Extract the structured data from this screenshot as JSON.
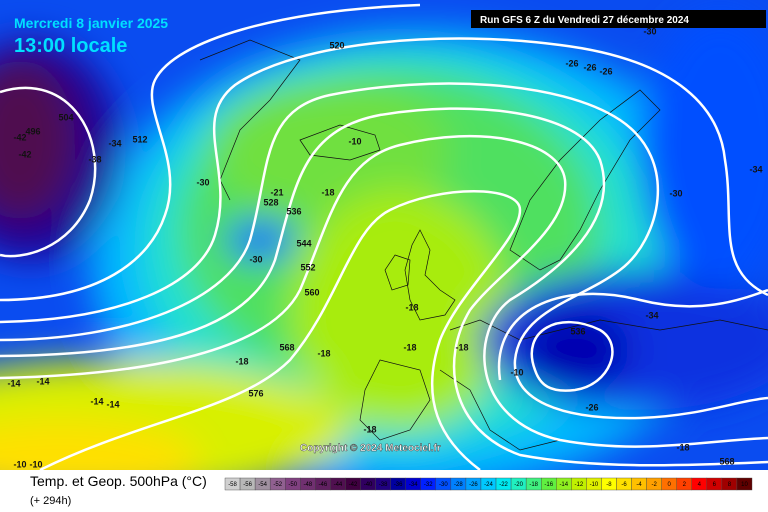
{
  "header": {
    "date": "Mercredi 8 janvier 2025",
    "time": "13:00 locale",
    "run": "Run GFS 6 Z du Vendredi 27 décembre 2024"
  },
  "footer": {
    "title": "Temp. et Geop. 500hPa (°C)",
    "offset": "(+ 294h)"
  },
  "copyright": "Copyright © 2024 Meteociel.fr",
  "map": {
    "labels": [
      504,
      -42,
      -42,
      496,
      -38,
      -34,
      512,
      -30,
      520,
      -21,
      528,
      536,
      -18,
      544,
      -30,
      552,
      560,
      568,
      -18,
      -18,
      576,
      -14,
      -14,
      -14,
      -14,
      -10,
      -10,
      -18,
      -18,
      -18,
      -18,
      -10,
      -26,
      -26,
      -26,
      -30,
      -30,
      -34,
      536,
      -34,
      -10,
      -26,
      -18,
      568
    ]
  },
  "legend": {
    "values": [
      -58,
      -56,
      -54,
      -52,
      -50,
      -48,
      -46,
      -44,
      -42,
      -40,
      -38,
      -36,
      -34,
      -32,
      -30,
      -28,
      -26,
      -24,
      -22,
      -20,
      -18,
      -16,
      -14,
      -12,
      -10,
      -8,
      -6,
      -4,
      -2,
      0,
      2,
      4,
      6,
      8,
      10
    ],
    "colors": [
      "#d0d0d0",
      "#b8b8b8",
      "#a090a0",
      "#906090",
      "#804080",
      "#703070",
      "#602060",
      "#501050",
      "#400040",
      "#300060",
      "#200080",
      "#0000a0",
      "#0000d0",
      "#0020ff",
      "#0050ff",
      "#0080ff",
      "#00a0ff",
      "#00c8ff",
      "#00e8f0",
      "#20f0c0",
      "#40f080",
      "#60f040",
      "#90f020",
      "#c0f000",
      "#e0f000",
      "#ffff00",
      "#ffe000",
      "#ffc000",
      "#ffa000",
      "#ff7000",
      "#ff4000",
      "#ff0000",
      "#d00000",
      "#a00000",
      "#600000"
    ]
  }
}
